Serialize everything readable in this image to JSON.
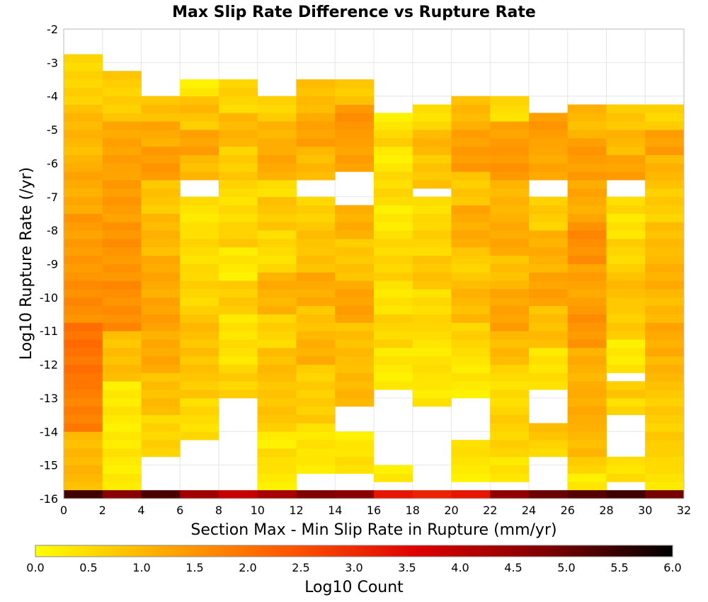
{
  "chart_data": {
    "type": "heatmap",
    "title": "Max Slip Rate Difference vs Rupture Rate",
    "xlabel": "Section Max - Min Slip Rate in Rupture (mm/yr)",
    "ylabel": "Log10 Rupture Rate (/yr)",
    "xlim": [
      0,
      32
    ],
    "ylim": [
      -16,
      -2
    ],
    "x_ticks": [
      "0",
      "2",
      "4",
      "6",
      "8",
      "10",
      "12",
      "14",
      "16",
      "18",
      "20",
      "22",
      "24",
      "26",
      "28",
      "30",
      "32"
    ],
    "y_ticks": [
      "-2",
      "-3",
      "-4",
      "-5",
      "-6",
      "-7",
      "-8",
      "-9",
      "-10",
      "-11",
      "-12",
      "-13",
      "-14",
      "-15",
      "-16"
    ],
    "x_bin_width": 2,
    "y_bin_height": 0.25,
    "grid": true,
    "colorbar": {
      "label": "Log10 Count",
      "range": [
        0,
        6
      ],
      "ticks": [
        "0.0",
        "0.5",
        "1.0",
        "1.5",
        "2.0",
        "2.5",
        "3.0",
        "3.5",
        "4.0",
        "4.5",
        "5.0",
        "5.5",
        "6.0"
      ],
      "colors": [
        "#ffff00",
        "#ffaa00",
        "#ff5500",
        "#dd0000",
        "#800000",
        "#000000"
      ]
    },
    "columns": [
      {
        "x": 0,
        "runs": [
          [
            -15.75,
            -3.0,
            [
              1.0,
              1.8,
              2.0,
              1.6,
              1.4,
              1.2,
              1.0,
              0.6
            ]
          ]
        ]
      },
      {
        "x": 2,
        "runs": [
          [
            -15.75,
            -3.5,
            [
              0.3,
              0.3,
              0.9,
              1.6,
              1.5,
              1.4,
              1.3,
              0.7
            ]
          ]
        ]
      },
      {
        "x": 4,
        "runs": [
          [
            -14.75,
            -6.75,
            [
              0.6,
              0.9,
              1.2,
              1.3,
              1.2,
              1.0,
              0.8
            ]
          ],
          [
            -6.5,
            -4.25,
            [
              1.4,
              1.2,
              0.9
            ]
          ]
        ]
      },
      {
        "x": 6,
        "runs": [
          [
            -14.25,
            -7.25,
            [
              0.5,
              0.8,
              0.9,
              0.6,
              0.5,
              0.4
            ]
          ],
          [
            -6.5,
            -4.75,
            [
              1.0,
              1.3,
              0.8
            ]
          ],
          [
            -4.5,
            -4.25,
            [
              1.0
            ]
          ],
          [
            -4.0,
            -3.75,
            [
              0.3
            ]
          ]
        ]
      },
      {
        "x": 8,
        "runs": [
          [
            -13.0,
            -11.75,
            [
              0.6,
              0.7,
              0.3
            ]
          ],
          [
            -11.5,
            -8.75,
            [
              0.4,
              0.7,
              0.3
            ]
          ],
          [
            -8.5,
            -8.25,
            [
              0.7
            ]
          ],
          [
            -8.0,
            -3.75,
            [
              0.5
            ]
          ],
          [
            -6.5,
            -4.0,
            [
              0.7,
              1.0,
              0.6
            ]
          ]
        ]
      },
      {
        "x": 10,
        "runs": [
          [
            -15.75,
            -14.25,
            [
              0.3,
              0.5,
              0.3
            ]
          ],
          [
            -14.0,
            -7.25,
            [
              0.8,
              0.9,
              0.6,
              1.1,
              0.5,
              0.8
            ]
          ],
          [
            -7.0,
            -6.75,
            [
              0.5
            ]
          ],
          [
            -6.5,
            -4.25,
            [
              1.2,
              1.1,
              0.6
            ]
          ]
        ]
      },
      {
        "x": 12,
        "runs": [
          [
            -15.25,
            -15.0,
            [
              0.3
            ]
          ],
          [
            -14.75,
            -13.25,
            [
              0.4,
              0.7
            ]
          ],
          [
            -13.0,
            -8.75,
            [
              0.7,
              1.1,
              0.8,
              1.2,
              0.9
            ]
          ],
          [
            -8.5,
            -7.25,
            [
              0.9,
              0.6
            ]
          ],
          [
            -6.5,
            -3.75,
            [
              1.0,
              1.3,
              0.9
            ]
          ]
        ]
      },
      {
        "x": 14,
        "runs": [
          [
            -15.25,
            -14.25,
            [
              0.4,
              0.3
            ]
          ],
          [
            -13.25,
            -7.5,
            [
              1.0,
              0.9,
              1.3,
              0.8,
              1.1
            ]
          ],
          [
            -6.25,
            -3.75,
            [
              1.3,
              1.5,
              0.8
            ]
          ]
        ]
      },
      {
        "x": 16,
        "runs": [
          [
            -15.5,
            -15.25,
            [
              0.3
            ]
          ],
          [
            -12.75,
            -6.5,
            [
              0.3,
              0.6,
              0.4,
              0.6,
              0.3,
              0.5
            ]
          ],
          [
            -6.25,
            -4.75,
            [
              0.3,
              0.6,
              0.3
            ]
          ]
        ]
      },
      {
        "x": 18,
        "runs": [
          [
            -13.25,
            -12.25,
            [
              0.3,
              0.5
            ]
          ],
          [
            -12.0,
            -11.0,
            [
              0.3,
              0.6
            ]
          ],
          [
            -10.75,
            -7.25,
            [
              0.5,
              0.8,
              0.6,
              0.5
            ]
          ],
          [
            -6.75,
            -4.5,
            [
              0.8,
              1.0,
              0.5
            ]
          ]
        ]
      },
      {
        "x": 20,
        "runs": [
          [
            -15.5,
            -15.25,
            [
              0.3
            ]
          ],
          [
            -15.0,
            -14.5,
            [
              0.5,
              0.3
            ]
          ],
          [
            -13.0,
            -4.25,
            [
              0.3,
              0.6,
              1.0,
              0.7,
              1.2,
              0.8,
              1.4,
              1.0
            ]
          ]
        ]
      },
      {
        "x": 22,
        "runs": [
          [
            -15.5,
            -14.25,
            [
              0.4,
              0.6
            ]
          ],
          [
            -14.0,
            -13.5,
            [
              0.7
            ]
          ],
          [
            -13.25,
            -6.75,
            [
              0.5,
              1.0,
              1.3,
              0.9,
              1.2,
              1.0
            ]
          ],
          [
            -6.5,
            -4.25,
            [
              1.5,
              1.3,
              0.5
            ]
          ]
        ]
      },
      {
        "x": 24,
        "runs": [
          [
            -14.75,
            -14.0,
            [
              0.5,
              0.9
            ]
          ],
          [
            -12.75,
            -7.25,
            [
              0.4,
              0.9,
              1.3,
              1.1,
              0.7
            ]
          ],
          [
            -6.5,
            -4.75,
            [
              1.2,
              1.4
            ]
          ]
        ]
      },
      {
        "x": 26,
        "runs": [
          [
            -15.75,
            -15.0,
            [
              0.3,
              0.6
            ]
          ],
          [
            -14.75,
            -13.0,
            [
              1.0,
              1.2
            ]
          ],
          [
            -12.75,
            -4.5,
            [
              1.1,
              1.5,
              1.3,
              1.6,
              1.2,
              1.4,
              1.0
            ]
          ]
        ]
      },
      {
        "x": 28,
        "runs": [
          [
            -15.5,
            -15.0,
            [
              0.4
            ]
          ],
          [
            -13.5,
            -12.75,
            [
              0.5,
              0.8
            ]
          ],
          [
            -12.25,
            -7.75,
            [
              0.3,
              0.7,
              0.9,
              0.6,
              0.4
            ]
          ],
          [
            -7.5,
            -7.25,
            [
              0.5
            ]
          ],
          [
            -6.5,
            -4.5,
            [
              1.3,
              1.0,
              0.8
            ]
          ]
        ]
      },
      {
        "x": 30,
        "runs": [
          [
            -15.75,
            -14.25,
            [
              0.4,
              0.6,
              0.8
            ]
          ],
          [
            -14.0,
            -7.0,
            [
              0.7,
              1.0,
              1.2,
              1.0,
              1.1,
              0.9,
              0.7
            ]
          ],
          [
            -6.75,
            -4.5,
            [
              1.0,
              1.4,
              0.6
            ]
          ]
        ]
      }
    ],
    "bottom_row": {
      "y": -16,
      "height": 0.25,
      "values": [
        5.4,
        4.7,
        5.3,
        4.4,
        3.9,
        4.3,
        4.8,
        4.7,
        3.3,
        3.1,
        3.3,
        4.6,
        5.0,
        5.2,
        5.4,
        4.9
      ]
    }
  }
}
